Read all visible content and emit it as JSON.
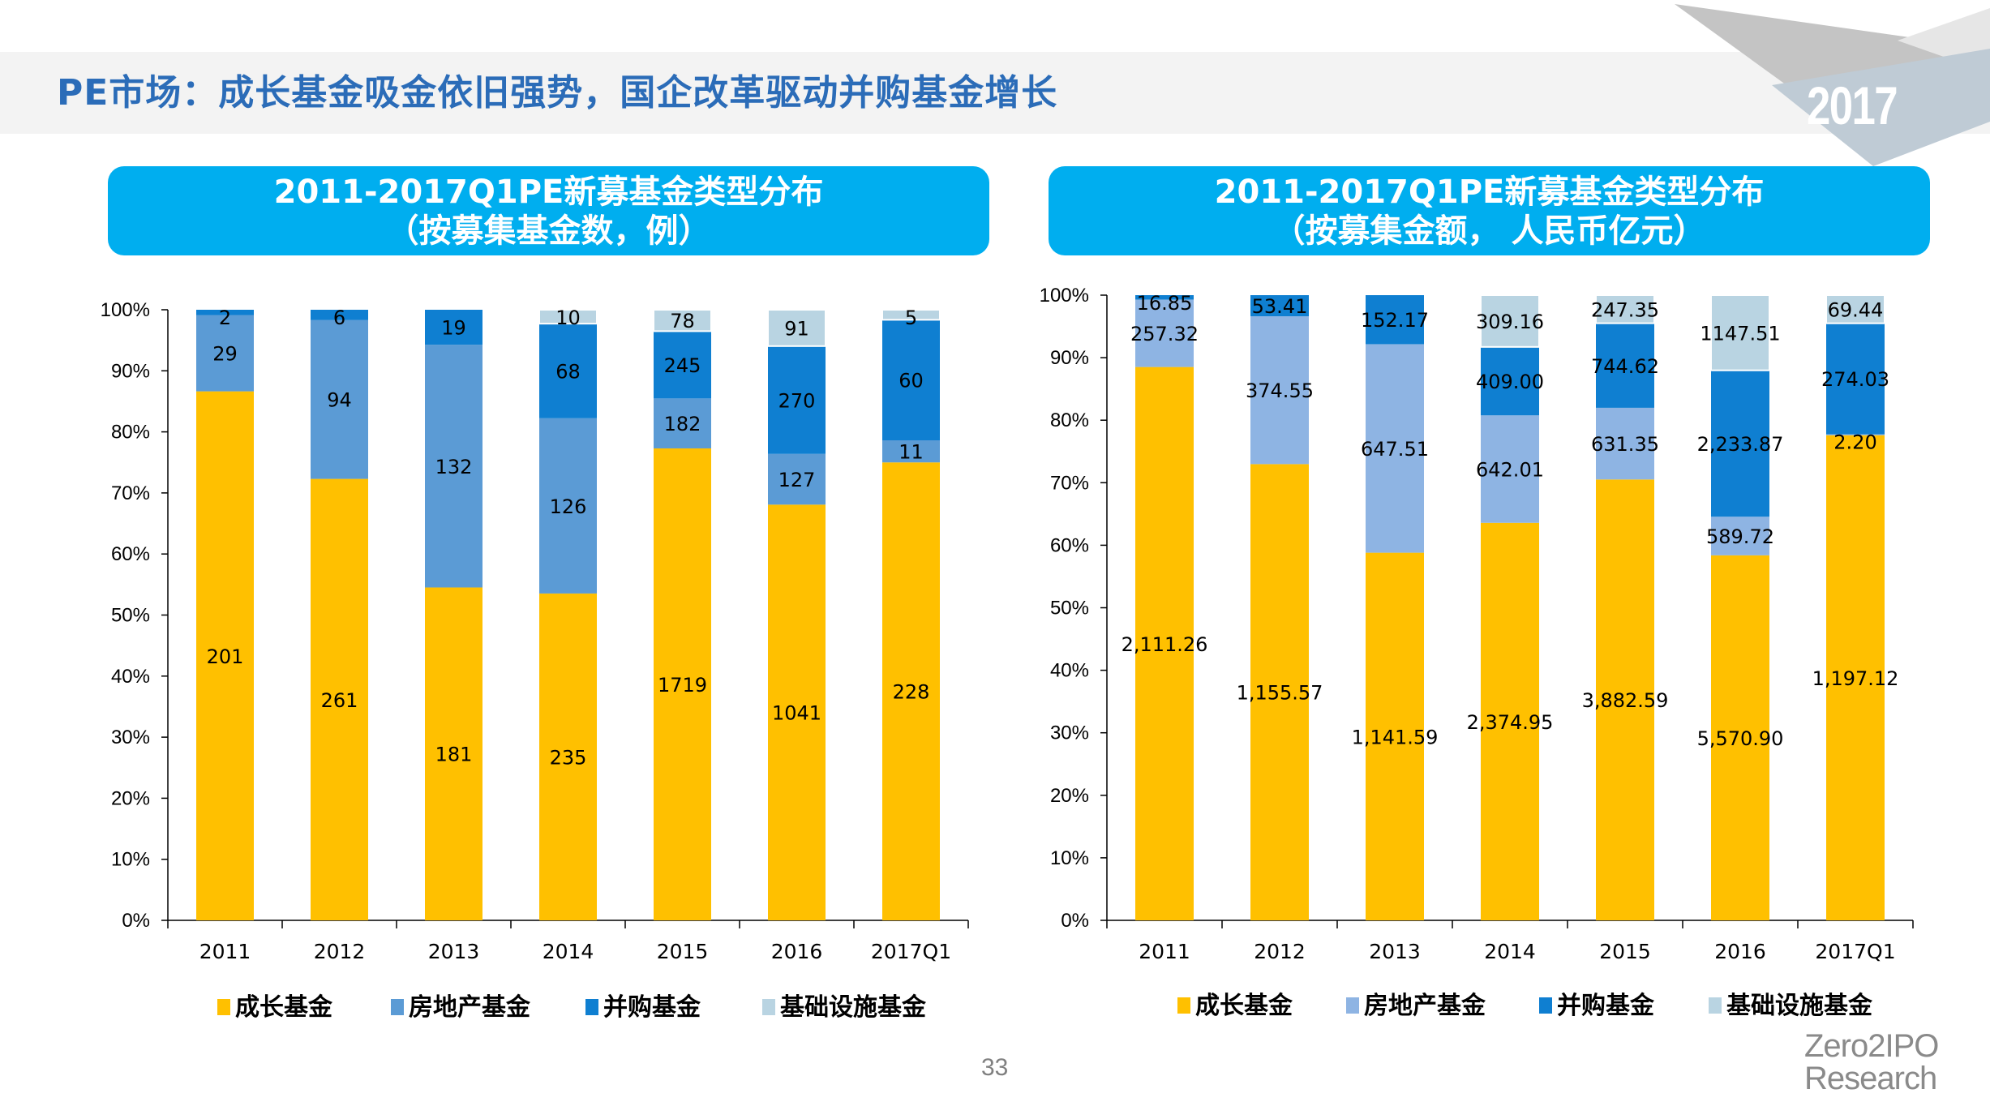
{
  "page": {
    "title": "PE市场：成长基金吸金依旧强势，国企改革驱动并购基金增长",
    "year_badge": "2017",
    "page_number": "33",
    "brand_line1": "Zero2IPO",
    "brand_line2": "Research"
  },
  "colors": {
    "growth": "#ffc000",
    "real_estate": "#5b9bd5",
    "real_estate_right": "#8eb4e3",
    "buyout": "#0f7fd1",
    "infrastructure": "#b9d4e2",
    "banner": "#00aeef",
    "title": "#2b6cb8"
  },
  "chart_data": [
    {
      "type": "bar",
      "stacked": "percent",
      "title": "2011-2017Q1PE新募基金类型分布",
      "subtitle": "（按募集基金数，例）",
      "xlabel": "",
      "ylabel": "",
      "ylim": [
        0,
        100
      ],
      "yticks": [
        "0%",
        "10%",
        "20%",
        "30%",
        "40%",
        "50%",
        "60%",
        "70%",
        "80%",
        "90%",
        "100%"
      ],
      "grid": false,
      "legend_position": "bottom",
      "categories": [
        "2011",
        "2012",
        "2013",
        "2014",
        "2015",
        "2016",
        "2017Q1"
      ],
      "series": [
        {
          "name": "成长基金",
          "key": "growth",
          "values": [
            201,
            261,
            181,
            235,
            1719,
            1041,
            228
          ],
          "labels": [
            "201",
            "261",
            "181",
            "235",
            "1719",
            "1041",
            "228"
          ]
        },
        {
          "name": "房地产基金",
          "key": "real_estate",
          "values": [
            29,
            94,
            132,
            126,
            182,
            127,
            11
          ],
          "labels": [
            "29",
            "94",
            "132",
            "126",
            "182",
            "127",
            "11"
          ]
        },
        {
          "name": "并购基金",
          "key": "buyout",
          "values": [
            2,
            6,
            19,
            68,
            245,
            270,
            60
          ],
          "labels": [
            "2",
            "6",
            "19",
            "68",
            "245",
            "270",
            "60"
          ]
        },
        {
          "name": "基础设施基金",
          "key": "infrastructure",
          "values": [
            0,
            0,
            0,
            10,
            78,
            91,
            5
          ],
          "labels": [
            "",
            "",
            "",
            "10",
            "78",
            "91",
            "5"
          ]
        }
      ]
    },
    {
      "type": "bar",
      "stacked": "percent",
      "title": "2011-2017Q1PE新募基金类型分布",
      "subtitle": "（按募集金额， 人民币亿元）",
      "xlabel": "",
      "ylabel": "",
      "ylim": [
        0,
        100
      ],
      "yticks": [
        "0%",
        "10%",
        "20%",
        "30%",
        "40%",
        "50%",
        "60%",
        "70%",
        "80%",
        "90%",
        "100%"
      ],
      "grid": false,
      "legend_position": "bottom",
      "categories": [
        "2011",
        "2012",
        "2013",
        "2014",
        "2015",
        "2016",
        "2017Q1"
      ],
      "series": [
        {
          "name": "成长基金",
          "key": "growth",
          "values": [
            2111.26,
            1155.57,
            1141.59,
            2374.95,
            3882.59,
            5570.9,
            1197.12
          ],
          "labels": [
            "2,111.26",
            "1,155.57",
            "1,141.59",
            "2,374.95",
            "3,882.59",
            "5,570.90",
            "1,197.12"
          ]
        },
        {
          "name": "房地产基金",
          "key": "real_estate_right",
          "values": [
            257.32,
            374.55,
            647.51,
            642.01,
            631.35,
            589.72,
            2.2
          ],
          "labels": [
            "257.32",
            "374.55",
            "647.51",
            "642.01",
            "631.35",
            "589.72",
            "2.20"
          ]
        },
        {
          "name": "并购基金",
          "key": "buyout",
          "values": [
            16.85,
            53.41,
            152.17,
            409.0,
            744.62,
            2233.87,
            274.03
          ],
          "labels": [
            "16.85",
            "53.41",
            "152.17",
            "409.00",
            "744.62",
            "2,233.87",
            "274.03"
          ]
        },
        {
          "name": "基础设施基金",
          "key": "infrastructure",
          "values": [
            0,
            0,
            0,
            309.16,
            247.35,
            1147.51,
            69.44
          ],
          "labels": [
            "",
            "",
            "",
            "309.16",
            "247.35",
            "1147.51",
            "69.44"
          ]
        }
      ]
    }
  ]
}
